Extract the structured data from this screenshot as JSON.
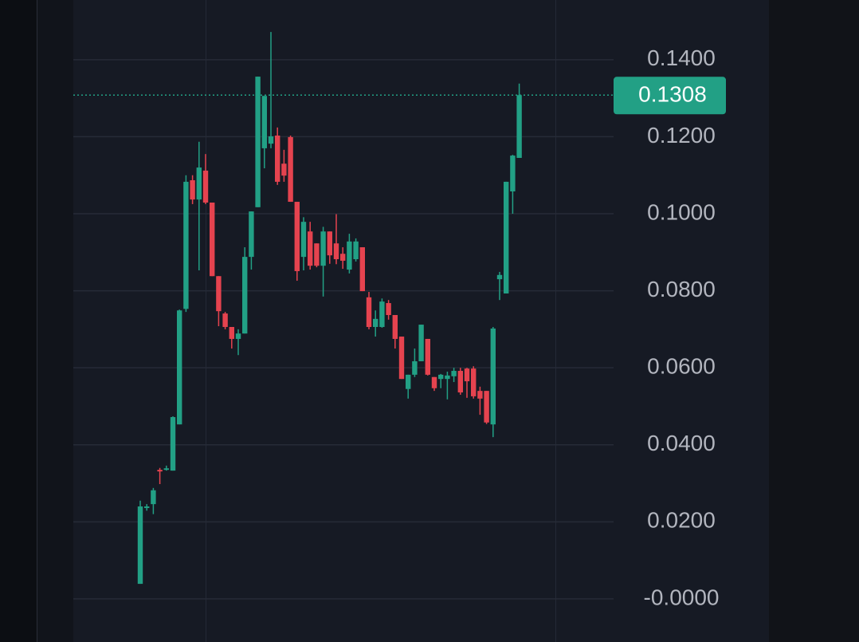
{
  "chart_data": {
    "type": "candlestick",
    "open": [
      0.0039,
      0.0236,
      0.0246,
      0.0335,
      0.0337,
      0.0333,
      0.0453,
      0.0753,
      0.1087,
      0.1037,
      0.1112,
      0.1029,
      0.0838,
      0.0741,
      0.0706,
      0.0675,
      0.0689,
      0.0888,
      0.1017,
      0.117,
      0.1182,
      0.1203,
      0.113,
      0.1199,
      0.1031,
      0.0888,
      0.0954,
      0.0923,
      0.0865,
      0.0954,
      0.0923,
      0.0896,
      0.0855,
      0.0882,
      0.0913,
      0.0783,
      0.0706,
      0.0706,
      0.0768,
      0.0737,
      0.0681,
      0.0545,
      0.0582,
      0.0617,
      0.0675,
      0.0576,
      0.0571,
      0.0571,
      0.0578,
      0.0592,
      0.0598,
      0.0598,
      0.054,
      0.054,
      0.0453,
      0.083,
      0.0793,
      0.1058,
      0.1145
    ],
    "high": [
      0.0255,
      0.0246,
      0.0288,
      0.034,
      0.0346,
      0.0474,
      0.0751,
      0.11,
      0.11,
      0.1187,
      0.1155,
      0.1029,
      0.0838,
      0.0745,
      0.0706,
      0.07,
      0.0913,
      0.1006,
      0.1356,
      0.1306,
      0.1472,
      0.1224,
      0.1166,
      0.1203,
      0.1031,
      0.0991,
      0.0979,
      0.0923,
      0.0966,
      0.0954,
      0.0999,
      0.0913,
      0.0948,
      0.0936,
      0.0913,
      0.0797,
      0.0749,
      0.078,
      0.0776,
      0.0737,
      0.0681,
      0.0582,
      0.065,
      0.0712,
      0.0675,
      0.0576,
      0.0584,
      0.059,
      0.06,
      0.06,
      0.06,
      0.0604,
      0.0551,
      0.054,
      0.0706,
      0.0849,
      0.1083,
      0.1153,
      0.1338
    ],
    "low": [
      0.0039,
      0.0229,
      0.022,
      0.0298,
      0.0333,
      0.0333,
      0.0453,
      0.0745,
      0.1025,
      0.0853,
      0.1025,
      0.0838,
      0.0708,
      0.07,
      0.065,
      0.0633,
      0.0689,
      0.0855,
      0.1017,
      0.1118,
      0.117,
      0.1075,
      0.1083,
      0.1031,
      0.0826,
      0.0853,
      0.0855,
      0.0861,
      0.0785,
      0.087,
      0.0869,
      0.0857,
      0.0845,
      0.0876,
      0.0799,
      0.07,
      0.0681,
      0.0704,
      0.0725,
      0.065,
      0.0571,
      0.052,
      0.0576,
      0.0617,
      0.058,
      0.054,
      0.0547,
      0.0518,
      0.0563,
      0.053,
      0.0522,
      0.052,
      0.0478,
      0.0454,
      0.042,
      0.0776,
      0.0793,
      0.1,
      0.1145
    ],
    "close": [
      0.024,
      0.024,
      0.0282,
      0.0333,
      0.0339,
      0.0472,
      0.0749,
      0.1083,
      0.1037,
      0.112,
      0.1029,
      0.0838,
      0.0747,
      0.0706,
      0.0675,
      0.0689,
      0.0888,
      0.1006,
      0.1356,
      0.1306,
      0.1201,
      0.1083,
      0.1099,
      0.1031,
      0.0851,
      0.0979,
      0.0865,
      0.0865,
      0.0954,
      0.0892,
      0.0882,
      0.0878,
      0.0928,
      0.0928,
      0.0799,
      0.0706,
      0.0727,
      0.0772,
      0.0737,
      0.0675,
      0.0571,
      0.0582,
      0.0617,
      0.0712,
      0.0582,
      0.0547,
      0.0582,
      0.058,
      0.0592,
      0.0536,
      0.0565,
      0.0526,
      0.052,
      0.0458,
      0.0702,
      0.0841,
      0.1083,
      0.1151,
      0.1308
    ],
    "up_color": "#22a085",
    "down_color": "#e5434f",
    "last_price": 0.1308,
    "ylim": [
      -0.0112,
      0.1555
    ],
    "yticks": [
      {
        "value": 0,
        "label": "-0.0000"
      },
      {
        "value": 0.02,
        "label": "0.0200"
      },
      {
        "value": 0.04,
        "label": "0.0400"
      },
      {
        "value": 0.06,
        "label": "0.0600"
      },
      {
        "value": 0.08,
        "label": "0.0800"
      },
      {
        "value": 0.1,
        "label": "0.1000"
      },
      {
        "value": 0.12,
        "label": "0.1200"
      },
      {
        "value": 0.14,
        "label": "0.1400"
      }
    ],
    "grid": true
  }
}
